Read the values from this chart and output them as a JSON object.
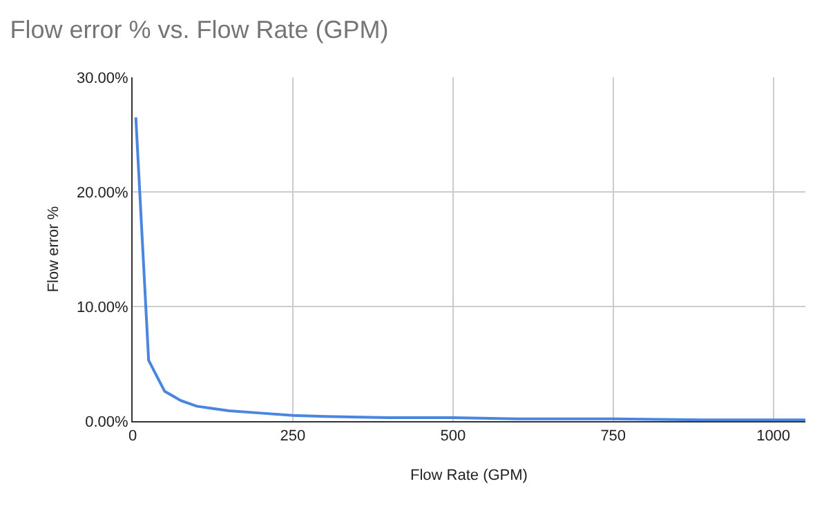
{
  "chart_data": {
    "type": "line",
    "title": "Flow error % vs. Flow Rate (GPM)",
    "xlabel": "Flow Rate (GPM)",
    "ylabel": "Flow error %",
    "x": [
      5,
      25,
      50,
      75,
      100,
      125,
      150,
      200,
      250,
      300,
      400,
      500,
      600,
      750,
      900,
      1050
    ],
    "series": [
      {
        "color": "#4a86e0",
        "values": [
          26.5,
          5.3,
          2.6,
          1.8,
          1.3,
          1.1,
          0.9,
          0.7,
          0.5,
          0.4,
          0.3,
          0.3,
          0.2,
          0.2,
          0.1,
          0.1
        ]
      }
    ],
    "xlim": [
      0,
      1050
    ],
    "xticks": [
      0,
      250,
      500,
      750,
      1000
    ],
    "ylim": [
      0,
      30
    ],
    "yticks": [
      {
        "value": 0,
        "label": "0.00%"
      },
      {
        "value": 10,
        "label": "10.00%"
      },
      {
        "value": 20,
        "label": "20.00%"
      },
      {
        "value": 30,
        "label": "30.00%"
      }
    ],
    "grid": true,
    "marker": "none",
    "line_style": "solid"
  }
}
